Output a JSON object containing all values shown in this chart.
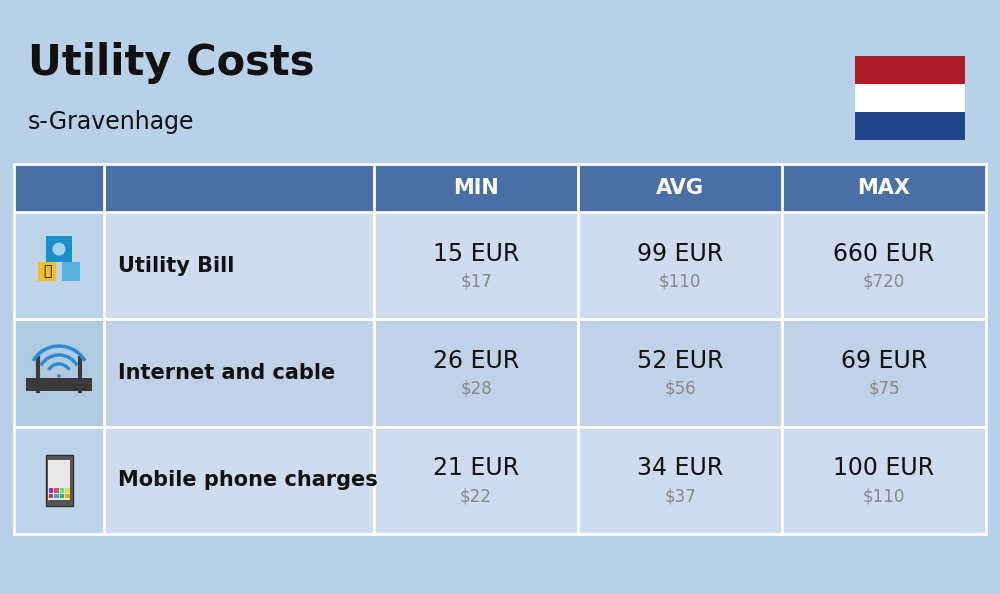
{
  "title": "Utility Costs",
  "subtitle": "s-Gravenhage",
  "background_color": "#b8d0e8",
  "header_color": "#4a6fa5",
  "header_text_color": "#ffffff",
  "row_color_1": "#cddcee",
  "row_color_2": "#c0d2e8",
  "icon_col_color_1": "#bed4ea",
  "icon_col_color_2": "#b2cadf",
  "text_color": "#111111",
  "usd_color": "#888888",
  "columns": [
    "MIN",
    "AVG",
    "MAX"
  ],
  "rows": [
    {
      "label": "Utility Bill",
      "min_eur": "15 EUR",
      "min_usd": "$17",
      "avg_eur": "99 EUR",
      "avg_usd": "$110",
      "max_eur": "660 EUR",
      "max_usd": "$720"
    },
    {
      "label": "Internet and cable",
      "min_eur": "26 EUR",
      "min_usd": "$28",
      "avg_eur": "52 EUR",
      "avg_usd": "$56",
      "max_eur": "69 EUR",
      "max_usd": "$75"
    },
    {
      "label": "Mobile phone charges",
      "min_eur": "21 EUR",
      "min_usd": "$22",
      "avg_eur": "34 EUR",
      "avg_usd": "$37",
      "max_eur": "100 EUR",
      "max_usd": "$110"
    }
  ],
  "flag_colors": [
    "#AE1C28",
    "#ffffff",
    "#21468B"
  ],
  "title_fontsize": 30,
  "subtitle_fontsize": 17,
  "header_fontsize": 15,
  "label_fontsize": 15,
  "value_fontsize": 17,
  "usd_fontsize": 12
}
